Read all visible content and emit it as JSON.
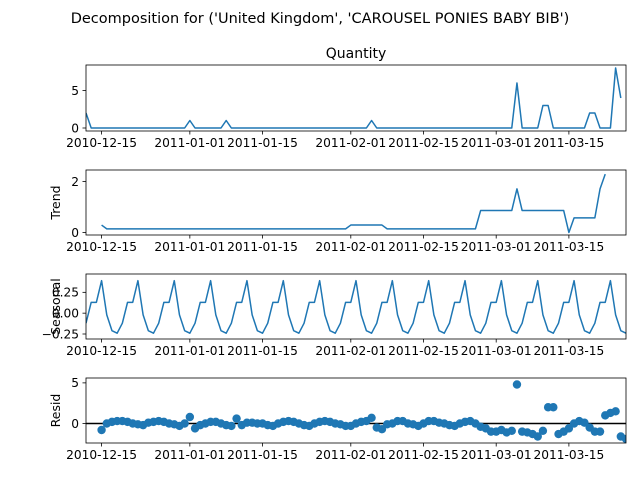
{
  "figure_title": "Decomposition for ('United Kingdom', 'CAROUSEL PONIES BABY BIB')",
  "colors": {
    "line": "#1f77b4",
    "axis": "#000000",
    "zero_line": "#000000"
  },
  "chart_data": [
    {
      "type": "line",
      "panel": "observed",
      "title": "Quantity",
      "ylabel": "",
      "x_start": "2010-12-12",
      "x_step_days": 1,
      "x_ticks": [
        "2010-12-15",
        "2011-01-01",
        "2011-01-15",
        "2011-02-01",
        "2011-02-15",
        "2011-03-01",
        "2011-03-15"
      ],
      "y_ticks": [
        0,
        5
      ],
      "ylim": [
        -0.4,
        8.4
      ],
      "values": [
        2,
        0,
        0,
        0,
        0,
        0,
        0,
        0,
        0,
        0,
        0,
        0,
        0,
        0,
        0,
        0,
        0,
        0,
        0,
        0,
        1,
        0,
        0,
        0,
        0,
        0,
        0,
        1,
        0,
        0,
        0,
        0,
        0,
        0,
        0,
        0,
        0,
        0,
        0,
        0,
        0,
        0,
        0,
        0,
        0,
        0,
        0,
        0,
        0,
        0,
        0,
        0,
        0,
        0,
        0,
        1,
        0,
        0,
        0,
        0,
        0,
        0,
        0,
        0,
        0,
        0,
        0,
        0,
        0,
        0,
        0,
        0,
        0,
        0,
        0,
        0,
        0,
        0,
        0,
        0,
        0,
        0,
        0,
        6,
        0,
        0,
        0,
        0,
        3,
        3,
        0,
        0,
        0,
        0,
        0,
        0,
        0,
        2,
        2,
        0,
        0,
        0,
        8,
        4
      ]
    },
    {
      "type": "line",
      "panel": "trend",
      "title": "",
      "ylabel": "Trend",
      "x_start": "2010-12-12",
      "x_step_days": 1,
      "x_ticks": [
        "2010-12-15",
        "2011-01-01",
        "2011-01-15",
        "2011-02-01",
        "2011-02-15",
        "2011-03-01",
        "2011-03-15"
      ],
      "y_ticks": [
        0,
        2
      ],
      "ylim": [
        -0.1,
        2.45
      ],
      "values": [
        null,
        null,
        null,
        0.29,
        0.14,
        0.14,
        0.14,
        0.14,
        0.14,
        0.14,
        0.14,
        0.14,
        0.14,
        0.14,
        0.14,
        0.14,
        0.14,
        0.14,
        0.14,
        0.14,
        0.14,
        0.14,
        0.14,
        0.14,
        0.14,
        0.14,
        0.14,
        0.14,
        0.14,
        0.14,
        0.14,
        0.14,
        0.14,
        0.14,
        0.14,
        0.14,
        0.14,
        0.14,
        0.14,
        0.14,
        0.14,
        0.14,
        0.14,
        0.14,
        0.14,
        0.14,
        0.14,
        0.14,
        0.14,
        0.14,
        0.14,
        0.29,
        0.29,
        0.29,
        0.29,
        0.29,
        0.29,
        0.29,
        0.14,
        0.14,
        0.14,
        0.14,
        0.14,
        0.14,
        0.14,
        0.14,
        0.14,
        0.14,
        0.14,
        0.14,
        0.14,
        0.14,
        0.14,
        0.14,
        0.14,
        0.14,
        0.86,
        0.86,
        0.86,
        0.86,
        0.86,
        0.86,
        0.86,
        1.71,
        0.86,
        0.86,
        0.86,
        0.86,
        0.86,
        0.86,
        0.86,
        0.86,
        0.86,
        0.0,
        0.57,
        0.57,
        0.57,
        0.57,
        0.57,
        1.71,
        2.29,
        null,
        null,
        null
      ]
    },
    {
      "type": "line",
      "panel": "seasonal",
      "title": "",
      "ylabel": "Seasonal",
      "x_start": "2010-12-12",
      "x_step_days": 1,
      "x_ticks": [
        "2010-12-15",
        "2011-01-01",
        "2011-01-15",
        "2011-02-01",
        "2011-02-15",
        "2011-03-01",
        "2011-03-15"
      ],
      "y_ticks": [
        0.25,
        0.0,
        -0.25
      ],
      "y_tick_labels": [
        "0.25",
        "0.00",
        "−0.25"
      ],
      "ylim": [
        -0.31,
        0.47
      ],
      "values": [
        -0.12,
        0.13,
        0.13,
        0.39,
        -0.02,
        -0.21,
        -0.24,
        -0.12,
        0.13,
        0.13,
        0.39,
        -0.02,
        -0.21,
        -0.24,
        -0.12,
        0.13,
        0.13,
        0.39,
        -0.02,
        -0.21,
        -0.24,
        -0.12,
        0.13,
        0.13,
        0.39,
        -0.02,
        -0.21,
        -0.24,
        -0.12,
        0.13,
        0.13,
        0.39,
        -0.02,
        -0.21,
        -0.24,
        -0.12,
        0.13,
        0.13,
        0.39,
        -0.02,
        -0.21,
        -0.24,
        -0.12,
        0.13,
        0.13,
        0.39,
        -0.02,
        -0.21,
        -0.24,
        -0.12,
        0.13,
        0.13,
        0.39,
        -0.02,
        -0.21,
        -0.24,
        -0.12,
        0.13,
        0.13,
        0.39,
        -0.02,
        -0.21,
        -0.24,
        -0.12,
        0.13,
        0.13,
        0.39,
        -0.02,
        -0.21,
        -0.24,
        -0.12,
        0.13,
        0.13,
        0.39,
        -0.02,
        -0.21,
        -0.24,
        -0.12,
        0.13,
        0.13,
        0.39,
        -0.02,
        -0.21,
        -0.24,
        -0.12,
        0.13,
        0.13,
        0.39,
        -0.02,
        -0.21,
        -0.24,
        -0.12,
        0.13,
        0.13,
        0.39,
        -0.02,
        -0.21,
        -0.24,
        -0.12,
        0.13,
        0.13,
        0.39,
        -0.02,
        -0.21,
        -0.24,
        -0.12,
        0.13,
        0.13
      ]
    },
    {
      "type": "scatter",
      "panel": "resid",
      "title": "",
      "ylabel": "Resid",
      "x_start": "2010-12-12",
      "x_step_days": 1,
      "x_ticks": [
        "2010-12-15",
        "2011-01-01",
        "2011-01-15",
        "2011-02-01",
        "2011-02-15",
        "2011-03-01",
        "2011-03-15"
      ],
      "y_ticks": [
        5,
        0
      ],
      "ylim": [
        -2.4,
        5.6
      ],
      "zero_line": true,
      "values": [
        null,
        null,
        null,
        -0.8,
        0.0,
        0.2,
        0.3,
        0.3,
        0.2,
        0.0,
        -0.1,
        -0.2,
        0.1,
        0.2,
        0.3,
        0.2,
        0.0,
        -0.1,
        -0.3,
        0.0,
        0.8,
        -0.6,
        -0.2,
        0.0,
        0.2,
        0.2,
        0.0,
        -0.2,
        -0.3,
        0.6,
        -0.2,
        0.1,
        0.1,
        0.0,
        0.0,
        -0.2,
        -0.3,
        0.0,
        0.2,
        0.3,
        0.2,
        0.0,
        -0.2,
        -0.3,
        0.0,
        0.2,
        0.3,
        0.2,
        0.0,
        -0.1,
        -0.3,
        -0.3,
        0.0,
        0.2,
        0.3,
        0.7,
        -0.5,
        -0.7,
        -0.1,
        0.0,
        0.3,
        0.3,
        0.0,
        -0.1,
        -0.3,
        0.0,
        0.3,
        0.3,
        0.1,
        0.0,
        -0.2,
        -0.3,
        0.0,
        0.2,
        0.3,
        0.0,
        -0.4,
        -0.6,
        -1.0,
        -1.0,
        -0.8,
        -1.1,
        -0.9,
        4.8,
        -1.0,
        -1.1,
        -1.3,
        -1.6,
        -0.9,
        2.0,
        2.0,
        -1.3,
        -1.0,
        -0.6,
        0.0,
        0.3,
        0.1,
        -0.5,
        -1.0,
        -1.0,
        1.0,
        1.3,
        1.5,
        -1.6,
        -1.9
      ]
    }
  ]
}
